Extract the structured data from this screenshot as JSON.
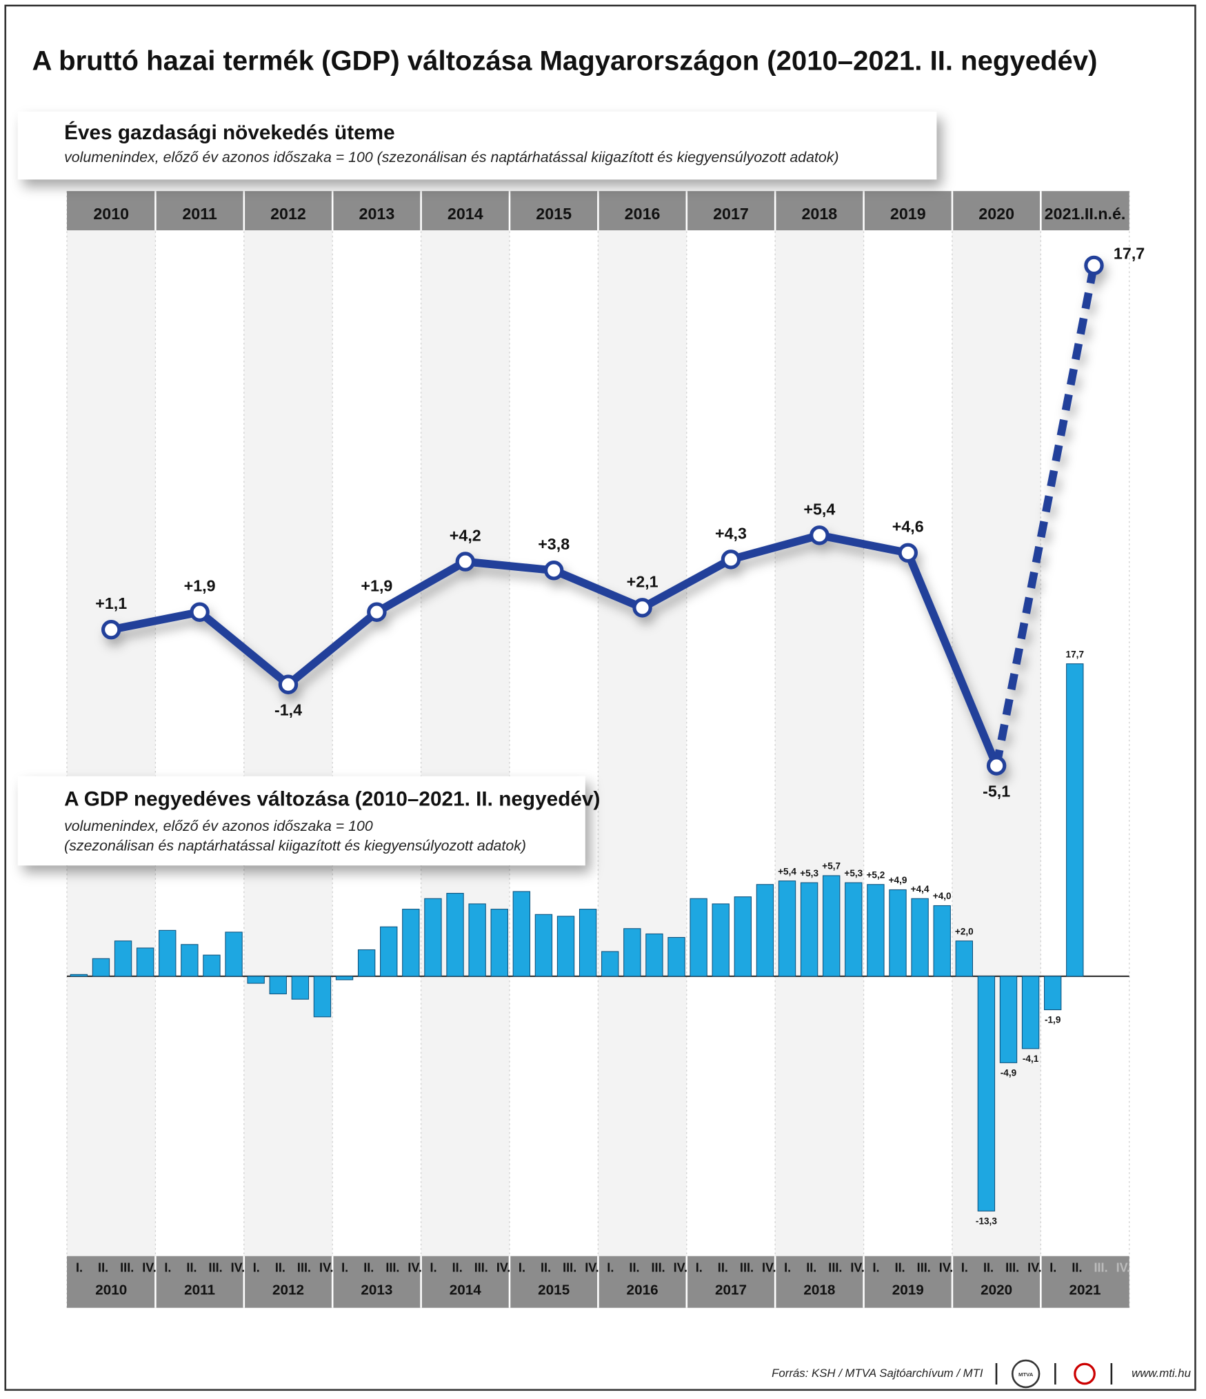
{
  "title": "A bruttó hazai termék (GDP) változása Magyarországon (2010–2021. II. negyedév)",
  "chart_data": [
    {
      "type": "line",
      "title": "Éves gazdasági növekedés üteme",
      "subtitle": "volumenindex, előző év azonos időszaka = 100 (szezonálisan és naptárhatással kiigazított és kiegyensúlyozott adatok)",
      "categories": [
        "2010",
        "2011",
        "2012",
        "2013",
        "2014",
        "2015",
        "2016",
        "2017",
        "2018",
        "2019",
        "2020",
        "2021.II.n.é."
      ],
      "values": [
        1.1,
        1.9,
        -1.4,
        1.9,
        4.2,
        3.8,
        2.1,
        4.3,
        5.4,
        4.6,
        -5.1,
        17.7
      ],
      "value_labels": [
        "+1,1",
        "+1,9",
        "-1,4",
        "+1,9",
        "+4,2",
        "+3,8",
        "+2,1",
        "+4,3",
        "+5,4",
        "+4,6",
        "-5,1",
        "17,7"
      ],
      "color": "#22409a",
      "last_segment_style": "dashed",
      "ylim": [
        -6.8,
        19.3
      ]
    },
    {
      "type": "bar",
      "title": "A GDP negyedéves változása (2010–2021. II. negyedév)",
      "subtitle": [
        "volumenindex, előző év azonos időszaka = 100",
        "(szezonálisan és naptárhatással kiigazított és kiegyensúlyozott adatok)"
      ],
      "groups": [
        "2010",
        "2011",
        "2012",
        "2013",
        "2014",
        "2015",
        "2016",
        "2017",
        "2018",
        "2019",
        "2020",
        "2021"
      ],
      "categories": [
        "I.",
        "II.",
        "III.",
        "IV.",
        "I.",
        "II.",
        "III.",
        "IV.",
        "I.",
        "II.",
        "III.",
        "IV.",
        "I.",
        "II.",
        "III.",
        "IV.",
        "I.",
        "II.",
        "III.",
        "IV.",
        "I.",
        "II.",
        "III.",
        "IV.",
        "I.",
        "II.",
        "III.",
        "IV.",
        "I.",
        "II.",
        "III.",
        "IV.",
        "I.",
        "II.",
        "III.",
        "IV.",
        "I.",
        "II.",
        "III.",
        "IV.",
        "I.",
        "II.",
        "III.",
        "IV.",
        "I.",
        "II.",
        "III.",
        "IV."
      ],
      "values": [
        0.1,
        1.0,
        2.0,
        1.6,
        2.6,
        1.8,
        1.2,
        2.5,
        -0.4,
        -1.0,
        -1.3,
        -2.3,
        -0.2,
        1.5,
        2.8,
        3.8,
        4.4,
        4.7,
        4.1,
        3.8,
        4.8,
        3.5,
        3.4,
        3.8,
        1.4,
        2.7,
        2.4,
        2.2,
        4.4,
        4.1,
        4.5,
        5.2,
        5.4,
        5.3,
        5.7,
        5.3,
        5.2,
        4.9,
        4.4,
        4.0,
        2.0,
        -13.3,
        -4.9,
        -4.1,
        -1.9,
        17.7,
        null,
        null
      ],
      "value_labels": [
        null,
        null,
        null,
        null,
        null,
        null,
        null,
        null,
        null,
        null,
        null,
        null,
        null,
        null,
        null,
        null,
        null,
        null,
        null,
        null,
        null,
        null,
        null,
        null,
        null,
        null,
        null,
        null,
        null,
        null,
        null,
        null,
        "+5,4",
        "+5,3",
        "+5,7",
        "+5,3",
        "+5,2",
        "+4,9",
        "+4,4",
        "+4,0",
        "+2,0",
        "-13,3",
        "-4,9",
        "-4,1",
        "-1,9",
        "17,7",
        null,
        null
      ],
      "color": "#1ea7e1",
      "ylim": [
        -15.7,
        17.9
      ]
    }
  ],
  "source": "Forrás: KSH / MTVA Sajtóarchívum / MTI",
  "logo": "MTVA",
  "website": "www.mti.hu"
}
